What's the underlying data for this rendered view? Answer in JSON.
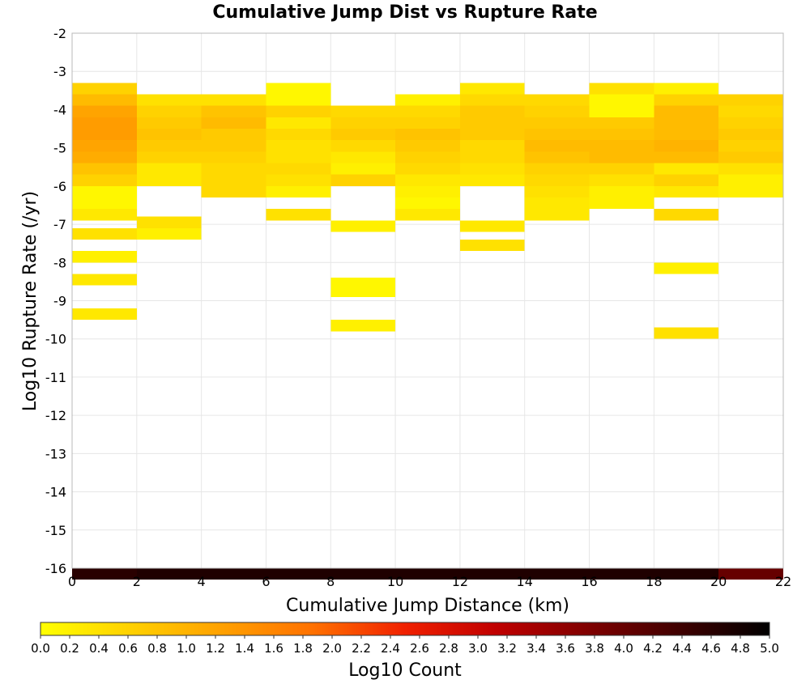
{
  "chart_data": {
    "type": "heatmap",
    "title": "Cumulative Jump Dist vs Rupture Rate",
    "xlabel": "Cumulative Jump Distance (km)",
    "ylabel": "Log10 Rupture Rate (/yr)",
    "xlim": [
      0,
      22
    ],
    "ylim": [
      -16,
      -2
    ],
    "x_ticks": [
      "0",
      "2",
      "4",
      "6",
      "8",
      "10",
      "12",
      "14",
      "16",
      "18",
      "20",
      "22"
    ],
    "y_ticks": [
      "-2",
      "-3",
      "-4",
      "-5",
      "-6",
      "-7",
      "-8",
      "-9",
      "-10",
      "-11",
      "-12",
      "-13",
      "-14",
      "-15",
      "-16"
    ],
    "bin_width_x": 2,
    "bin_height_y": 0.3,
    "grid": true,
    "colorbar": {
      "label": "Log10 Count",
      "range": [
        0,
        5
      ],
      "ticks": [
        "0.0",
        "0.2",
        "0.4",
        "0.6",
        "0.8",
        "1.0",
        "1.2",
        "1.4",
        "1.6",
        "1.8",
        "2.0",
        "2.2",
        "2.4",
        "2.6",
        "2.8",
        "3.0",
        "3.2",
        "3.4",
        "3.6",
        "3.8",
        "4.0",
        "4.2",
        "4.4",
        "4.6",
        "4.8",
        "5.0"
      ],
      "stops": [
        "#ffff00",
        "#ffd000",
        "#ffa000",
        "#ff7000",
        "#f02000",
        "#c00000",
        "#800000",
        "#400000",
        "#000000"
      ]
    },
    "cells": [
      {
        "x": 0,
        "y": -3.3,
        "v": 0.6
      },
      {
        "x": 0,
        "y": -3.6,
        "v": 0.9
      },
      {
        "x": 0,
        "y": -3.9,
        "v": 1.2
      },
      {
        "x": 0,
        "y": -4.2,
        "v": 1.3
      },
      {
        "x": 0,
        "y": -4.5,
        "v": 1.3
      },
      {
        "x": 0,
        "y": -4.8,
        "v": 1.2
      },
      {
        "x": 0,
        "y": -5.1,
        "v": 1.1
      },
      {
        "x": 0,
        "y": -5.4,
        "v": 0.8
      },
      {
        "x": 0,
        "y": -5.7,
        "v": 0.6
      },
      {
        "x": 0,
        "y": -6.0,
        "v": 0.1
      },
      {
        "x": 0,
        "y": -6.3,
        "v": 0.1
      },
      {
        "x": 0,
        "y": -6.6,
        "v": 0.3
      },
      {
        "x": 0,
        "y": -7.1,
        "v": 0.4
      },
      {
        "x": 0,
        "y": -7.7,
        "v": 0.2
      },
      {
        "x": 0,
        "y": -8.3,
        "v": 0.3
      },
      {
        "x": 0,
        "y": -9.2,
        "v": 0.3
      },
      {
        "x": 2,
        "y": -3.6,
        "v": 0.4
      },
      {
        "x": 2,
        "y": -3.9,
        "v": 0.6
      },
      {
        "x": 2,
        "y": -4.2,
        "v": 0.7
      },
      {
        "x": 2,
        "y": -4.5,
        "v": 0.8
      },
      {
        "x": 2,
        "y": -4.8,
        "v": 0.7
      },
      {
        "x": 2,
        "y": -5.1,
        "v": 0.6
      },
      {
        "x": 2,
        "y": -5.4,
        "v": 0.3
      },
      {
        "x": 2,
        "y": -5.7,
        "v": 0.3
      },
      {
        "x": 2,
        "y": -6.8,
        "v": 0.4
      },
      {
        "x": 2,
        "y": -7.1,
        "v": 0.2
      },
      {
        "x": 4,
        "y": -3.6,
        "v": 0.4
      },
      {
        "x": 4,
        "y": -3.9,
        "v": 0.8
      },
      {
        "x": 4,
        "y": -4.2,
        "v": 0.9
      },
      {
        "x": 4,
        "y": -4.5,
        "v": 0.7
      },
      {
        "x": 4,
        "y": -4.8,
        "v": 0.7
      },
      {
        "x": 4,
        "y": -5.1,
        "v": 0.6
      },
      {
        "x": 4,
        "y": -5.4,
        "v": 0.5
      },
      {
        "x": 4,
        "y": -5.7,
        "v": 0.5
      },
      {
        "x": 4,
        "y": -6.0,
        "v": 0.5
      },
      {
        "x": 6,
        "y": -3.3,
        "v": 0.1
      },
      {
        "x": 6,
        "y": -3.6,
        "v": 0.1
      },
      {
        "x": 6,
        "y": -3.9,
        "v": 0.6
      },
      {
        "x": 6,
        "y": -4.2,
        "v": 0.3
      },
      {
        "x": 6,
        "y": -4.5,
        "v": 0.5
      },
      {
        "x": 6,
        "y": -4.8,
        "v": 0.4
      },
      {
        "x": 6,
        "y": -5.1,
        "v": 0.4
      },
      {
        "x": 6,
        "y": -5.4,
        "v": 0.5
      },
      {
        "x": 6,
        "y": -5.7,
        "v": 0.4
      },
      {
        "x": 6,
        "y": -6.0,
        "v": 0.2
      },
      {
        "x": 6,
        "y": -6.6,
        "v": 0.4
      },
      {
        "x": 8,
        "y": -3.9,
        "v": 0.5
      },
      {
        "x": 8,
        "y": -4.2,
        "v": 0.6
      },
      {
        "x": 8,
        "y": -4.5,
        "v": 0.7
      },
      {
        "x": 8,
        "y": -4.8,
        "v": 0.5
      },
      {
        "x": 8,
        "y": -5.1,
        "v": 0.3
      },
      {
        "x": 8,
        "y": -5.4,
        "v": 0.2
      },
      {
        "x": 8,
        "y": -5.7,
        "v": 0.6
      },
      {
        "x": 8,
        "y": -6.9,
        "v": 0.2
      },
      {
        "x": 8,
        "y": -8.4,
        "v": 0.1
      },
      {
        "x": 8,
        "y": -8.6,
        "v": 0.1
      },
      {
        "x": 8,
        "y": -9.5,
        "v": 0.2
      },
      {
        "x": 10,
        "y": -3.6,
        "v": 0.2
      },
      {
        "x": 10,
        "y": -3.9,
        "v": 0.5
      },
      {
        "x": 10,
        "y": -4.2,
        "v": 0.6
      },
      {
        "x": 10,
        "y": -4.5,
        "v": 0.8
      },
      {
        "x": 10,
        "y": -4.8,
        "v": 0.7
      },
      {
        "x": 10,
        "y": -5.1,
        "v": 0.6
      },
      {
        "x": 10,
        "y": -5.4,
        "v": 0.5
      },
      {
        "x": 10,
        "y": -5.7,
        "v": 0.3
      },
      {
        "x": 10,
        "y": -6.0,
        "v": 0.2
      },
      {
        "x": 10,
        "y": -6.3,
        "v": 0.1
      },
      {
        "x": 10,
        "y": -6.6,
        "v": 0.3
      },
      {
        "x": 12,
        "y": -3.3,
        "v": 0.3
      },
      {
        "x": 12,
        "y": -3.6,
        "v": 0.5
      },
      {
        "x": 12,
        "y": -3.9,
        "v": 0.7
      },
      {
        "x": 12,
        "y": -4.2,
        "v": 0.7
      },
      {
        "x": 12,
        "y": -4.5,
        "v": 0.7
      },
      {
        "x": 12,
        "y": -4.8,
        "v": 0.5
      },
      {
        "x": 12,
        "y": -5.1,
        "v": 0.5
      },
      {
        "x": 12,
        "y": -5.4,
        "v": 0.4
      },
      {
        "x": 12,
        "y": -5.7,
        "v": 0.3
      },
      {
        "x": 12,
        "y": -6.9,
        "v": 0.3
      },
      {
        "x": 12,
        "y": -7.4,
        "v": 0.4
      },
      {
        "x": 14,
        "y": -3.6,
        "v": 0.5
      },
      {
        "x": 14,
        "y": -3.9,
        "v": 0.6
      },
      {
        "x": 14,
        "y": -4.2,
        "v": 0.7
      },
      {
        "x": 14,
        "y": -4.5,
        "v": 0.8
      },
      {
        "x": 14,
        "y": -4.8,
        "v": 0.9
      },
      {
        "x": 14,
        "y": -5.1,
        "v": 0.8
      },
      {
        "x": 14,
        "y": -5.4,
        "v": 0.6
      },
      {
        "x": 14,
        "y": -5.7,
        "v": 0.5
      },
      {
        "x": 14,
        "y": -6.0,
        "v": 0.4
      },
      {
        "x": 14,
        "y": -6.3,
        "v": 0.3
      },
      {
        "x": 14,
        "y": -6.6,
        "v": 0.3
      },
      {
        "x": 16,
        "y": -3.3,
        "v": 0.4
      },
      {
        "x": 16,
        "y": -3.6,
        "v": 0.1
      },
      {
        "x": 16,
        "y": -3.9,
        "v": 0.1
      },
      {
        "x": 16,
        "y": -4.2,
        "v": 0.7
      },
      {
        "x": 16,
        "y": -4.5,
        "v": 0.8
      },
      {
        "x": 16,
        "y": -4.8,
        "v": 0.9
      },
      {
        "x": 16,
        "y": -5.1,
        "v": 0.9
      },
      {
        "x": 16,
        "y": -5.4,
        "v": 0.6
      },
      {
        "x": 16,
        "y": -5.7,
        "v": 0.4
      },
      {
        "x": 16,
        "y": -6.0,
        "v": 0.2
      },
      {
        "x": 16,
        "y": -6.3,
        "v": 0.2
      },
      {
        "x": 18,
        "y": -3.3,
        "v": 0.2
      },
      {
        "x": 18,
        "y": -3.6,
        "v": 0.6
      },
      {
        "x": 18,
        "y": -3.9,
        "v": 0.9
      },
      {
        "x": 18,
        "y": -4.2,
        "v": 0.9
      },
      {
        "x": 18,
        "y": -4.5,
        "v": 0.9
      },
      {
        "x": 18,
        "y": -4.8,
        "v": 1.0
      },
      {
        "x": 18,
        "y": -5.1,
        "v": 0.9
      },
      {
        "x": 18,
        "y": -5.4,
        "v": 0.3
      },
      {
        "x": 18,
        "y": -5.7,
        "v": 0.6
      },
      {
        "x": 18,
        "y": -6.0,
        "v": 0.3
      },
      {
        "x": 18,
        "y": -6.6,
        "v": 0.5
      },
      {
        "x": 18,
        "y": -8.0,
        "v": 0.2
      },
      {
        "x": 18,
        "y": -9.7,
        "v": 0.4
      },
      {
        "x": 20,
        "y": -3.6,
        "v": 0.6
      },
      {
        "x": 20,
        "y": -3.9,
        "v": 0.5
      },
      {
        "x": 20,
        "y": -4.2,
        "v": 0.6
      },
      {
        "x": 20,
        "y": -4.5,
        "v": 0.7
      },
      {
        "x": 20,
        "y": -4.8,
        "v": 0.6
      },
      {
        "x": 20,
        "y": -5.1,
        "v": 0.7
      },
      {
        "x": 20,
        "y": -5.4,
        "v": 0.4
      },
      {
        "x": 20,
        "y": -5.7,
        "v": 0.2
      },
      {
        "x": 20,
        "y": -6.0,
        "v": 0.2
      },
      {
        "x": 0,
        "y": -16,
        "v": 4.6
      },
      {
        "x": 2,
        "y": -16,
        "v": 4.7
      },
      {
        "x": 4,
        "y": -16,
        "v": 4.7
      },
      {
        "x": 6,
        "y": -16,
        "v": 4.7
      },
      {
        "x": 8,
        "y": -16,
        "v": 4.7
      },
      {
        "x": 10,
        "y": -16,
        "v": 4.7
      },
      {
        "x": 12,
        "y": -16,
        "v": 4.7
      },
      {
        "x": 14,
        "y": -16,
        "v": 4.7
      },
      {
        "x": 16,
        "y": -16,
        "v": 4.7
      },
      {
        "x": 18,
        "y": -16,
        "v": 4.7
      },
      {
        "x": 20,
        "y": -16,
        "v": 4.0
      }
    ]
  }
}
